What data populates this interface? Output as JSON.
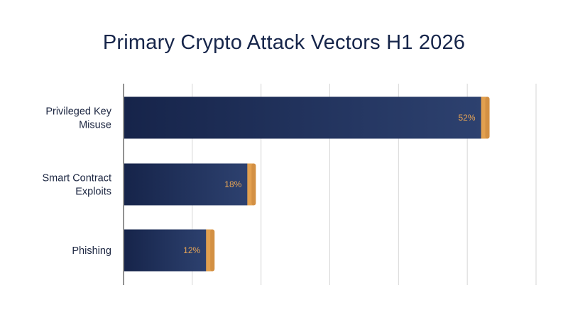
{
  "chart_data": {
    "type": "bar",
    "orientation": "horizontal",
    "title": "Primary Crypto Attack Vectors H1 2026",
    "categories": [
      [
        "Privileged Key",
        "Misuse"
      ],
      [
        "Smart Contract",
        "Exploits"
      ],
      [
        "Phishing"
      ]
    ],
    "values": [
      52,
      18,
      12
    ],
    "value_labels": [
      "52%",
      "18%",
      "12%"
    ],
    "xlim": [
      0,
      60
    ],
    "grid": "vertical",
    "legend": "none"
  },
  "colors": {
    "bar_dark": "#16244a",
    "bar_light": "#2d416f",
    "bar_cap": "#e2a04f",
    "bar_cap_shadow": "#b6742d",
    "value_label": "#e8a555",
    "grid": "#d6d6d6",
    "axis": "#4a4a4a",
    "title": "#16254a",
    "category_label": "#1b2540"
  }
}
